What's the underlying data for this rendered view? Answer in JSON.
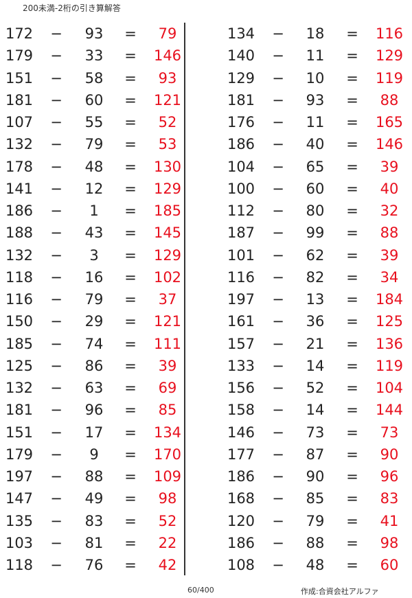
{
  "title": "200未満-2桁の引き算解答",
  "operator": "−",
  "equals": "=",
  "answer_color": "#e8101e",
  "left_problems": [
    {
      "a": "172",
      "b": "93",
      "answer": "79"
    },
    {
      "a": "179",
      "b": "33",
      "answer": "146"
    },
    {
      "a": "151",
      "b": "58",
      "answer": "93"
    },
    {
      "a": "181",
      "b": "60",
      "answer": "121"
    },
    {
      "a": "107",
      "b": "55",
      "answer": "52"
    },
    {
      "a": "132",
      "b": "79",
      "answer": "53"
    },
    {
      "a": "178",
      "b": "48",
      "answer": "130"
    },
    {
      "a": "141",
      "b": "12",
      "answer": "129"
    },
    {
      "a": "186",
      "b": "1",
      "answer": "185"
    },
    {
      "a": "188",
      "b": "43",
      "answer": "145"
    },
    {
      "a": "132",
      "b": "3",
      "answer": "129"
    },
    {
      "a": "118",
      "b": "16",
      "answer": "102"
    },
    {
      "a": "116",
      "b": "79",
      "answer": "37"
    },
    {
      "a": "150",
      "b": "29",
      "answer": "121"
    },
    {
      "a": "185",
      "b": "74",
      "answer": "111"
    },
    {
      "a": "125",
      "b": "86",
      "answer": "39"
    },
    {
      "a": "132",
      "b": "63",
      "answer": "69"
    },
    {
      "a": "181",
      "b": "96",
      "answer": "85"
    },
    {
      "a": "151",
      "b": "17",
      "answer": "134"
    },
    {
      "a": "179",
      "b": "9",
      "answer": "170"
    },
    {
      "a": "197",
      "b": "88",
      "answer": "109"
    },
    {
      "a": "147",
      "b": "49",
      "answer": "98"
    },
    {
      "a": "135",
      "b": "83",
      "answer": "52"
    },
    {
      "a": "103",
      "b": "81",
      "answer": "22"
    },
    {
      "a": "118",
      "b": "76",
      "answer": "42"
    }
  ],
  "right_problems": [
    {
      "a": "134",
      "b": "18",
      "answer": "116"
    },
    {
      "a": "140",
      "b": "11",
      "answer": "129"
    },
    {
      "a": "129",
      "b": "10",
      "answer": "119"
    },
    {
      "a": "181",
      "b": "93",
      "answer": "88"
    },
    {
      "a": "176",
      "b": "11",
      "answer": "165"
    },
    {
      "a": "186",
      "b": "40",
      "answer": "146"
    },
    {
      "a": "104",
      "b": "65",
      "answer": "39"
    },
    {
      "a": "100",
      "b": "60",
      "answer": "40"
    },
    {
      "a": "112",
      "b": "80",
      "answer": "32"
    },
    {
      "a": "187",
      "b": "99",
      "answer": "88"
    },
    {
      "a": "101",
      "b": "62",
      "answer": "39"
    },
    {
      "a": "116",
      "b": "82",
      "answer": "34"
    },
    {
      "a": "197",
      "b": "13",
      "answer": "184"
    },
    {
      "a": "161",
      "b": "36",
      "answer": "125"
    },
    {
      "a": "157",
      "b": "21",
      "answer": "136"
    },
    {
      "a": "133",
      "b": "14",
      "answer": "119"
    },
    {
      "a": "156",
      "b": "52",
      "answer": "104"
    },
    {
      "a": "158",
      "b": "14",
      "answer": "144"
    },
    {
      "a": "146",
      "b": "73",
      "answer": "73"
    },
    {
      "a": "177",
      "b": "87",
      "answer": "90"
    },
    {
      "a": "186",
      "b": "90",
      "answer": "96"
    },
    {
      "a": "168",
      "b": "85",
      "answer": "83"
    },
    {
      "a": "120",
      "b": "79",
      "answer": "41"
    },
    {
      "a": "186",
      "b": "88",
      "answer": "98"
    },
    {
      "a": "108",
      "b": "48",
      "answer": "60"
    }
  ],
  "footer": {
    "page": "60/400",
    "author": "作成:合資会社アルファ"
  }
}
